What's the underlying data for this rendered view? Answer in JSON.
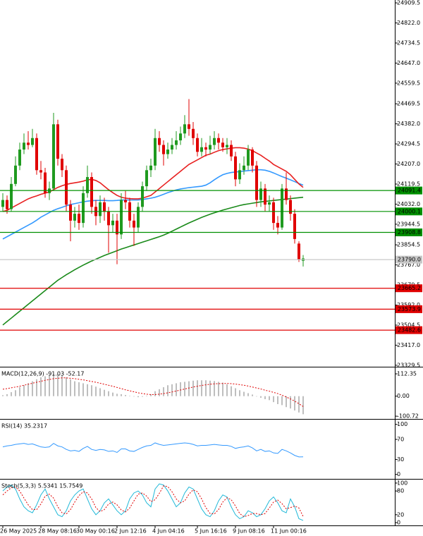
{
  "chart_data": [
    {
      "type": "candlestick",
      "ylim": [
        23323,
        24922
      ],
      "yticks": [
        24909.5,
        {
          "value": 24822,
          "label": "24822.0"
        },
        24734.5,
        {
          "value": 24647,
          "label": "24647.0"
        },
        24559.5,
        24469.5,
        {
          "value": 24382,
          "label": "24382.0"
        },
        24294.5,
        {
          "value": 24207,
          "label": "24207.0"
        },
        24119.5,
        {
          "value": 24032,
          "label": "24032.0"
        },
        23944.5,
        23854.5,
        {
          "value": 23767,
          "label": "23767.0"
        },
        23679.5,
        {
          "value": 23592,
          "label": "23592.0"
        },
        23504.5,
        {
          "value": 23417,
          "label": "23417.0"
        },
        23329.5
      ],
      "categories": [
        "26 May 2025",
        null,
        null,
        null,
        null,
        null,
        null,
        null,
        null,
        "28 May 08:16",
        null,
        null,
        null,
        null,
        null,
        null,
        null,
        null,
        "30 May 00:16",
        null,
        null,
        null,
        null,
        null,
        null,
        null,
        null,
        "2 Jun 12:16",
        null,
        null,
        null,
        null,
        null,
        null,
        null,
        null,
        "4 Jun 04:16",
        null,
        null,
        null,
        null,
        null,
        null,
        null,
        null,
        null,
        "5 Jun 16:16",
        null,
        null,
        null,
        null,
        null,
        null,
        null,
        null,
        "9 Jun 08:16",
        null,
        null,
        null,
        null,
        null,
        null,
        null,
        null,
        "11 Jun 00:16",
        null,
        null,
        null,
        null,
        null,
        null,
        null
      ],
      "up_color": "#1f9a1f",
      "down_color": "#e00000",
      "open": [
        24020,
        24050,
        24010,
        24120,
        24200,
        24270,
        24300,
        24290,
        24320,
        24180,
        24170,
        24080,
        24100,
        24380,
        24230,
        24180,
        24030,
        23960,
        23990,
        23950,
        24080,
        24150,
        24020,
        23980,
        24040,
        24000,
        23940,
        23960,
        23900,
        24050,
        24040,
        23960,
        23930,
        24020,
        24110,
        24180,
        24200,
        24320,
        24290,
        24250,
        24270,
        24290,
        24310,
        24340,
        24380,
        24360,
        24320,
        24260,
        24280,
        24270,
        24290,
        24320,
        24300,
        24280,
        24290,
        24240,
        24140,
        24180,
        24200,
        24270,
        24200,
        24050,
        24100,
        24030,
        24040,
        23950,
        23930,
        24100,
        24050,
        23990,
        23860,
        23785
      ],
      "high": [
        24080,
        24070,
        24150,
        24240,
        24300,
        24340,
        24350,
        24360,
        24340,
        24220,
        24190,
        24130,
        24430,
        24400,
        24250,
        24200,
        24050,
        24020,
        24030,
        24110,
        24200,
        24170,
        24050,
        24070,
        24060,
        24020,
        23990,
        23990,
        24080,
        24090,
        24060,
        23990,
        24040,
        24130,
        24200,
        24230,
        24360,
        24350,
        24310,
        24300,
        24320,
        24350,
        24370,
        24420,
        24490,
        24390,
        24340,
        24320,
        24300,
        24330,
        24350,
        24340,
        24320,
        24320,
        24310,
        24260,
        24210,
        24240,
        24290,
        24280,
        24220,
        24130,
        24120,
        24070,
        24060,
        23980,
        24120,
        24170,
        24070,
        24010,
        23870,
        23810
      ],
      "low": [
        24000,
        23990,
        24000,
        24110,
        24180,
        24250,
        24270,
        24280,
        24160,
        24140,
        24060,
        24050,
        24090,
        24200,
        24150,
        24000,
        23870,
        23930,
        23920,
        23930,
        24060,
        23990,
        23940,
        23950,
        23960,
        23820,
        23910,
        23770,
        23880,
        24010,
        23930,
        23850,
        23910,
        24000,
        24090,
        24150,
        24180,
        24260,
        24200,
        24230,
        24250,
        24270,
        24290,
        24320,
        24330,
        24290,
        24240,
        24240,
        24240,
        24250,
        24270,
        24270,
        24260,
        24250,
        24220,
        24110,
        24120,
        24160,
        24180,
        24170,
        24020,
        24020,
        24000,
        24000,
        23920,
        23900,
        23920,
        24030,
        23960,
        23860,
        23780,
        23760
      ],
      "close": [
        24050,
        24010,
        24120,
        24200,
        24270,
        24300,
        24290,
        24320,
        24180,
        24170,
        24080,
        24100,
        24380,
        24230,
        24180,
        24030,
        23960,
        23990,
        23950,
        24080,
        24150,
        24020,
        23980,
        24040,
        24000,
        23940,
        23960,
        23900,
        24050,
        24040,
        23960,
        23930,
        24020,
        24110,
        24180,
        24200,
        24320,
        24290,
        24250,
        24270,
        24290,
        24310,
        24340,
        24380,
        24360,
        24320,
        24260,
        24280,
        24270,
        24290,
        24320,
        24300,
        24280,
        24290,
        24240,
        24140,
        24180,
        24200,
        24270,
        24200,
        24050,
        24100,
        24030,
        24040,
        23950,
        23930,
        24100,
        24050,
        23990,
        23880,
        23790,
        23795
      ],
      "series": [
        {
          "color": "#1a8a1a",
          "values": [
            23505,
            23520,
            23535,
            23550,
            23565,
            23580,
            23595,
            23610,
            23625,
            23640,
            23655,
            23670,
            23685,
            23700,
            23712,
            23724,
            23735,
            23746,
            23756,
            23766,
            23775,
            23784,
            23792,
            23800,
            23808,
            23815,
            23822,
            23829,
            23836,
            23842,
            23848,
            23854,
            23860,
            23866,
            23872,
            23878,
            23884,
            23890,
            23897,
            23905,
            23914,
            23923,
            23932,
            23941,
            23950,
            23958,
            23966,
            23974,
            23981,
            23988,
            23994,
            24000,
            24006,
            24011,
            24016,
            24021,
            24026,
            24030,
            24033,
            24036,
            24039,
            24042,
            24044,
            24046,
            24048,
            24050,
            24052,
            24054,
            24056,
            24058,
            24060,
            24062
          ]
        },
        {
          "color": "#3399ff",
          "values": [
            23880,
            23890,
            23900,
            23910,
            23920,
            23930,
            23940,
            23950,
            23962,
            23975,
            23985,
            23995,
            24005,
            24012,
            24018,
            24025,
            24030,
            24034,
            24038,
            24042,
            24045,
            24047,
            24048,
            24048,
            24048,
            24047,
            24047,
            24048,
            24050,
            24050,
            24050,
            24050,
            24050,
            24052,
            24055,
            24058,
            24062,
            24068,
            24075,
            24082,
            24088,
            24094,
            24098,
            24101,
            24104,
            24106,
            24108,
            24110,
            24115,
            24125,
            24138,
            24150,
            24160,
            24166,
            24170,
            24172,
            24174,
            24176,
            24178,
            24180,
            24182,
            24182,
            24180,
            24175,
            24168,
            24160,
            24152,
            24145,
            24138,
            24130,
            24122,
            24115
          ]
        },
        {
          "color": "#e82020",
          "values": [
            24000,
            24005,
            24015,
            24025,
            24035,
            24045,
            24055,
            24062,
            24068,
            24075,
            24080,
            24085,
            24095,
            24105,
            24112,
            24118,
            24122,
            24125,
            24128,
            24132,
            24138,
            24140,
            24135,
            24125,
            24110,
            24095,
            24082,
            24070,
            24062,
            24058,
            24056,
            24055,
            24055,
            24058,
            24064,
            24070,
            24085,
            24100,
            24115,
            24130,
            24145,
            24160,
            24175,
            24190,
            24205,
            24215,
            24225,
            24235,
            24245,
            24250,
            24258,
            24265,
            24270,
            24273,
            24276,
            24278,
            24278,
            24276,
            24272,
            24265,
            24255,
            24245,
            24232,
            24220,
            24205,
            24195,
            24185,
            24175,
            24160,
            24140,
            24120,
            24105
          ]
        }
      ],
      "levels": [
        {
          "value": 24091.4,
          "color": "#009000"
        },
        {
          "value": 24000.1,
          "color": "#009000"
        },
        {
          "value": 23908.8,
          "color": "#009000"
        },
        {
          "value": 23790,
          "label": "23790.0",
          "color": "#c8c8c8"
        },
        {
          "value": 23665.2,
          "color": "#e00000"
        },
        {
          "value": 23573.9,
          "color": "#e00000"
        },
        {
          "value": 23482.6,
          "color": "#e00000"
        }
      ]
    },
    {
      "type": "macd",
      "title": "MACD(12,26,9) -91.03 -52.17",
      "ylim": [
        -111,
        141
      ],
      "yticks": [
        112.35,
        {
          "value": 0,
          "label": "0.00"
        },
        -100.72
      ],
      "series": [
        {
          "style": "bar",
          "color": "#a8a8a8",
          "values": [
            5,
            10,
            20,
            30,
            45,
            55,
            65,
            75,
            85,
            95,
            100,
            105,
            112,
            110,
            105,
            95,
            85,
            75,
            70,
            65,
            60,
            55,
            48,
            40,
            32,
            25,
            18,
            12,
            10,
            6,
            2,
            -2,
            -5,
            -3,
            2,
            10,
            25,
            35,
            45,
            55,
            60,
            65,
            70,
            72,
            75,
            78,
            80,
            80,
            80,
            78,
            76,
            72,
            68,
            60,
            50,
            40,
            30,
            22,
            15,
            8,
            0,
            -8,
            -15,
            -20,
            -30,
            -40,
            -45,
            -55,
            -62,
            -72,
            -82,
            -91.03
          ]
        },
        {
          "style": "dotted",
          "color": "#e00000",
          "values": [
            35,
            38,
            42,
            46,
            50,
            55,
            60,
            65,
            70,
            75,
            80,
            84,
            88,
            90,
            92,
            92,
            90,
            88,
            85,
            82,
            78,
            74,
            70,
            65,
            60,
            55,
            50,
            44,
            38,
            32,
            27,
            22,
            17,
            13,
            10,
            8,
            8,
            10,
            13,
            17,
            21,
            26,
            31,
            36,
            41,
            46,
            50,
            54,
            57,
            60,
            62,
            63,
            64,
            64,
            63,
            61,
            58,
            55,
            51,
            46,
            41,
            36,
            30,
            25,
            19,
            13,
            5,
            -4,
            -14,
            -25,
            -38,
            -52.17
          ]
        }
      ]
    },
    {
      "type": "line",
      "title": "RSI(14) 35.2317",
      "ylim": [
        -6,
        108
      ],
      "yticks": [
        100,
        70,
        30,
        0
      ],
      "series": [
        {
          "style": "solid",
          "color": "#3399ff",
          "values": [
            55,
            57,
            58,
            60,
            61,
            62,
            60,
            61,
            58,
            55,
            54,
            55,
            62,
            57,
            55,
            50,
            47,
            48,
            46,
            52,
            56,
            50,
            48,
            50,
            49,
            46,
            47,
            44,
            51,
            51,
            47,
            46,
            50,
            54,
            57,
            58,
            63,
            60,
            58,
            59,
            60,
            61,
            62,
            63,
            62,
            60,
            57,
            58,
            58,
            59,
            60,
            59,
            58,
            58,
            56,
            52,
            54,
            55,
            57,
            53,
            47,
            50,
            46,
            47,
            43,
            42,
            50,
            47,
            43,
            38,
            35,
            35.2317
          ]
        }
      ]
    },
    {
      "type": "line",
      "title": "Stoch(5,3,3) 5.5341 15.7549",
      "ylim": [
        -7,
        107
      ],
      "yticks": [
        100,
        80,
        20,
        0
      ],
      "series": [
        {
          "style": "solid",
          "color": "#20b8d8",
          "values": [
            80,
            90,
            95,
            85,
            60,
            40,
            30,
            25,
            45,
            70,
            85,
            60,
            40,
            20,
            15,
            30,
            55,
            70,
            80,
            85,
            60,
            35,
            20,
            30,
            50,
            60,
            45,
            30,
            20,
            30,
            60,
            75,
            80,
            70,
            50,
            40,
            85,
            98,
            95,
            80,
            60,
            40,
            50,
            75,
            90,
            85,
            60,
            35,
            20,
            15,
            30,
            55,
            70,
            65,
            40,
            20,
            10,
            15,
            30,
            25,
            15,
            20,
            35,
            55,
            65,
            50,
            30,
            25,
            60,
            40,
            10,
            5.5341
          ]
        },
        {
          "style": "dotted",
          "color": "#e00000",
          "values": [
            70,
            80,
            88,
            90,
            80,
            62,
            45,
            33,
            33,
            47,
            67,
            72,
            62,
            40,
            25,
            22,
            33,
            52,
            68,
            78,
            75,
            60,
            38,
            28,
            33,
            47,
            52,
            45,
            32,
            27,
            37,
            55,
            72,
            75,
            67,
            53,
            58,
            74,
            93,
            91,
            78,
            60,
            50,
            55,
            72,
            83,
            78,
            60,
            38,
            23,
            22,
            33,
            52,
            63,
            58,
            42,
            23,
            15,
            18,
            23,
            23,
            20,
            23,
            37,
            52,
            57,
            48,
            35,
            38,
            42,
            37,
            15.7549
          ]
        }
      ]
    }
  ]
}
